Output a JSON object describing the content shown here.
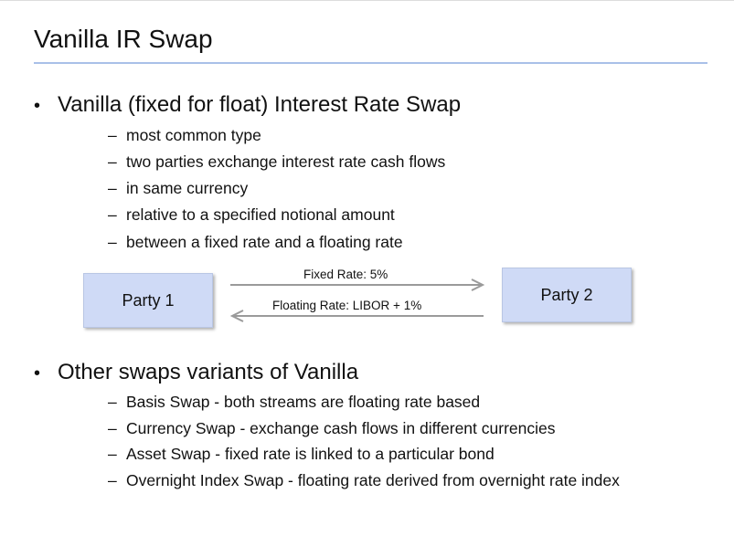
{
  "slide": {
    "title": "Vanilla IR Swap",
    "section1": {
      "heading": "Vanilla (fixed for float) Interest Rate Swap",
      "items": [
        "most common type",
        "two parties exchange interest rate cash flows",
        "in same currency",
        "relative to a specified notional amount",
        "between a fixed rate and a floating rate"
      ]
    },
    "diagram": {
      "party1": "Party 1",
      "party2": "Party 2",
      "fixed_label": "Fixed Rate: 5%",
      "floating_label": "Floating Rate: LIBOR + 1%"
    },
    "section2": {
      "heading": "Other swaps variants of Vanilla",
      "items": [
        "Basis Swap - both streams are floating rate based",
        "Currency Swap - exchange cash flows in different currencies",
        "Asset Swap - fixed rate is linked to a particular bond",
        "Overnight Index Swap - floating rate derived from overnight rate index"
      ]
    },
    "bullet_glyph": "•",
    "dash_glyph": "–",
    "colors": {
      "title_rule": "#a9c0e8",
      "party_fill": "#cfdaf6",
      "arrow": "#9a9a9a"
    }
  }
}
